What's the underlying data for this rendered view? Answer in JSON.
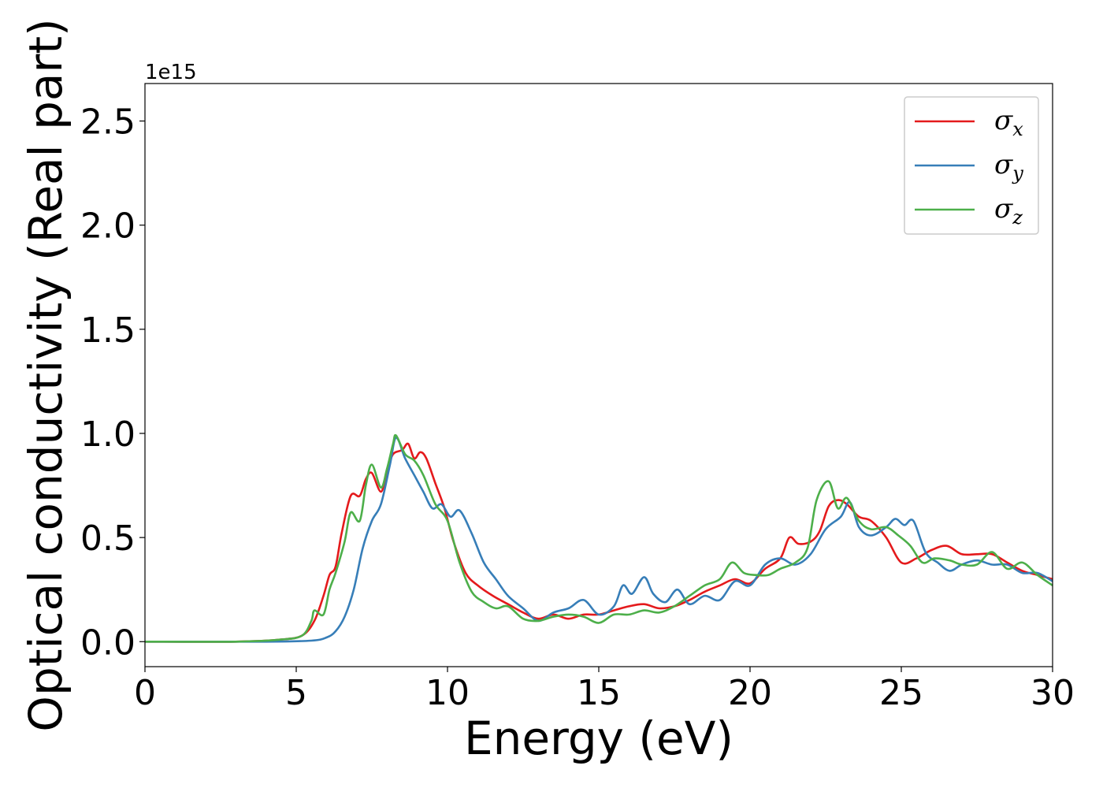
{
  "chart_data": {
    "type": "line",
    "title": "",
    "xlabel": "Energy (eV)",
    "ylabel": "Optical conductivity (Real part)",
    "y_offset_label": "1e15",
    "xlim": [
      0,
      30
    ],
    "ylim": [
      -0.12,
      2.68
    ],
    "x_ticks": [
      0,
      5,
      10,
      15,
      20,
      25,
      30
    ],
    "y_ticks": [
      0.0,
      0.5,
      1.0,
      1.5,
      2.0,
      2.5
    ],
    "x_tick_labels": [
      "0",
      "5",
      "10",
      "15",
      "20",
      "25",
      "30"
    ],
    "y_tick_labels": [
      "0.0",
      "0.5",
      "1.0",
      "1.5",
      "2.0",
      "2.5"
    ],
    "grid": false,
    "legend_position": "top-right",
    "series": [
      {
        "name": "σ",
        "subscript": "x",
        "color": "#e41a1c",
        "points": [
          [
            0,
            0
          ],
          [
            3,
            0.0
          ],
          [
            4.5,
            0.01
          ],
          [
            5.2,
            0.03
          ],
          [
            5.6,
            0.1
          ],
          [
            5.9,
            0.22
          ],
          [
            6.1,
            0.32
          ],
          [
            6.3,
            0.36
          ],
          [
            6.5,
            0.52
          ],
          [
            6.8,
            0.7
          ],
          [
            7.1,
            0.7
          ],
          [
            7.3,
            0.78
          ],
          [
            7.5,
            0.81
          ],
          [
            7.8,
            0.72
          ],
          [
            8.0,
            0.82
          ],
          [
            8.2,
            0.9
          ],
          [
            8.5,
            0.92
          ],
          [
            8.7,
            0.95
          ],
          [
            8.9,
            0.88
          ],
          [
            9.1,
            0.91
          ],
          [
            9.3,
            0.88
          ],
          [
            9.6,
            0.76
          ],
          [
            9.9,
            0.64
          ],
          [
            10.2,
            0.48
          ],
          [
            10.6,
            0.33
          ],
          [
            11.0,
            0.27
          ],
          [
            11.5,
            0.22
          ],
          [
            12.0,
            0.18
          ],
          [
            12.5,
            0.14
          ],
          [
            13.0,
            0.11
          ],
          [
            13.5,
            0.13
          ],
          [
            14.0,
            0.11
          ],
          [
            14.5,
            0.13
          ],
          [
            15.0,
            0.13
          ],
          [
            15.5,
            0.15
          ],
          [
            16.0,
            0.17
          ],
          [
            16.5,
            0.18
          ],
          [
            17.0,
            0.16
          ],
          [
            17.5,
            0.17
          ],
          [
            18.0,
            0.2
          ],
          [
            18.5,
            0.24
          ],
          [
            19.0,
            0.27
          ],
          [
            19.5,
            0.3
          ],
          [
            20.0,
            0.28
          ],
          [
            20.5,
            0.35
          ],
          [
            21.0,
            0.4
          ],
          [
            21.3,
            0.5
          ],
          [
            21.6,
            0.47
          ],
          [
            22.0,
            0.48
          ],
          [
            22.3,
            0.53
          ],
          [
            22.6,
            0.65
          ],
          [
            22.9,
            0.68
          ],
          [
            23.2,
            0.66
          ],
          [
            23.6,
            0.6
          ],
          [
            24.0,
            0.58
          ],
          [
            24.5,
            0.5
          ],
          [
            25.0,
            0.38
          ],
          [
            25.5,
            0.4
          ],
          [
            26.0,
            0.44
          ],
          [
            26.5,
            0.46
          ],
          [
            27.0,
            0.42
          ],
          [
            27.5,
            0.42
          ],
          [
            28.0,
            0.42
          ],
          [
            28.5,
            0.38
          ],
          [
            29.0,
            0.34
          ],
          [
            29.5,
            0.32
          ],
          [
            30.0,
            0.3
          ]
        ]
      },
      {
        "name": "σ",
        "subscript": "y",
        "color": "#377eb8",
        "points": [
          [
            0,
            0
          ],
          [
            4,
            0.0
          ],
          [
            5.5,
            0.005
          ],
          [
            6.0,
            0.02
          ],
          [
            6.3,
            0.05
          ],
          [
            6.6,
            0.12
          ],
          [
            6.9,
            0.25
          ],
          [
            7.2,
            0.45
          ],
          [
            7.5,
            0.58
          ],
          [
            7.8,
            0.66
          ],
          [
            8.1,
            0.85
          ],
          [
            8.3,
            0.98
          ],
          [
            8.6,
            0.88
          ],
          [
            8.9,
            0.8
          ],
          [
            9.2,
            0.72
          ],
          [
            9.5,
            0.64
          ],
          [
            9.8,
            0.66
          ],
          [
            10.1,
            0.6
          ],
          [
            10.4,
            0.63
          ],
          [
            10.8,
            0.52
          ],
          [
            11.2,
            0.38
          ],
          [
            11.6,
            0.3
          ],
          [
            12.0,
            0.22
          ],
          [
            12.5,
            0.16
          ],
          [
            13.0,
            0.1
          ],
          [
            13.5,
            0.14
          ],
          [
            14.0,
            0.16
          ],
          [
            14.5,
            0.2
          ],
          [
            15.0,
            0.13
          ],
          [
            15.5,
            0.17
          ],
          [
            15.8,
            0.27
          ],
          [
            16.1,
            0.23
          ],
          [
            16.5,
            0.31
          ],
          [
            16.8,
            0.23
          ],
          [
            17.2,
            0.19
          ],
          [
            17.6,
            0.25
          ],
          [
            18.0,
            0.18
          ],
          [
            18.5,
            0.22
          ],
          [
            19.0,
            0.2
          ],
          [
            19.5,
            0.29
          ],
          [
            20.0,
            0.27
          ],
          [
            20.5,
            0.37
          ],
          [
            21.0,
            0.4
          ],
          [
            21.5,
            0.37
          ],
          [
            22.0,
            0.42
          ],
          [
            22.5,
            0.54
          ],
          [
            23.0,
            0.6
          ],
          [
            23.3,
            0.67
          ],
          [
            23.6,
            0.55
          ],
          [
            24.0,
            0.51
          ],
          [
            24.5,
            0.55
          ],
          [
            24.8,
            0.59
          ],
          [
            25.1,
            0.56
          ],
          [
            25.4,
            0.58
          ],
          [
            25.8,
            0.43
          ],
          [
            26.2,
            0.38
          ],
          [
            26.6,
            0.34
          ],
          [
            27.0,
            0.37
          ],
          [
            27.5,
            0.39
          ],
          [
            28.0,
            0.37
          ],
          [
            28.5,
            0.37
          ],
          [
            29.0,
            0.33
          ],
          [
            29.5,
            0.33
          ],
          [
            30.0,
            0.29
          ]
        ]
      },
      {
        "name": "σ",
        "subscript": "z",
        "color": "#4daf4a",
        "points": [
          [
            0,
            0
          ],
          [
            3,
            0.0
          ],
          [
            4.5,
            0.01
          ],
          [
            5.2,
            0.03
          ],
          [
            5.5,
            0.1
          ],
          [
            5.6,
            0.15
          ],
          [
            5.9,
            0.13
          ],
          [
            6.1,
            0.25
          ],
          [
            6.3,
            0.33
          ],
          [
            6.6,
            0.48
          ],
          [
            6.8,
            0.62
          ],
          [
            7.1,
            0.58
          ],
          [
            7.3,
            0.75
          ],
          [
            7.5,
            0.85
          ],
          [
            7.8,
            0.74
          ],
          [
            8.0,
            0.83
          ],
          [
            8.2,
            0.95
          ],
          [
            8.3,
            0.99
          ],
          [
            8.6,
            0.9
          ],
          [
            8.9,
            0.87
          ],
          [
            9.2,
            0.8
          ],
          [
            9.6,
            0.66
          ],
          [
            10.0,
            0.58
          ],
          [
            10.4,
            0.38
          ],
          [
            10.8,
            0.24
          ],
          [
            11.2,
            0.19
          ],
          [
            11.6,
            0.16
          ],
          [
            12.0,
            0.17
          ],
          [
            12.5,
            0.11
          ],
          [
            13.0,
            0.1
          ],
          [
            13.5,
            0.12
          ],
          [
            14.0,
            0.13
          ],
          [
            14.5,
            0.12
          ],
          [
            15.0,
            0.09
          ],
          [
            15.5,
            0.13
          ],
          [
            16.0,
            0.13
          ],
          [
            16.5,
            0.15
          ],
          [
            17.0,
            0.14
          ],
          [
            17.5,
            0.17
          ],
          [
            18.0,
            0.22
          ],
          [
            18.5,
            0.27
          ],
          [
            19.0,
            0.3
          ],
          [
            19.4,
            0.38
          ],
          [
            19.8,
            0.33
          ],
          [
            20.2,
            0.32
          ],
          [
            20.6,
            0.32
          ],
          [
            21.0,
            0.35
          ],
          [
            21.5,
            0.38
          ],
          [
            21.9,
            0.45
          ],
          [
            22.2,
            0.68
          ],
          [
            22.6,
            0.77
          ],
          [
            22.9,
            0.64
          ],
          [
            23.2,
            0.69
          ],
          [
            23.6,
            0.58
          ],
          [
            24.0,
            0.54
          ],
          [
            24.5,
            0.55
          ],
          [
            24.9,
            0.51
          ],
          [
            25.3,
            0.46
          ],
          [
            25.7,
            0.38
          ],
          [
            26.1,
            0.4
          ],
          [
            26.6,
            0.39
          ],
          [
            27.0,
            0.37
          ],
          [
            27.5,
            0.37
          ],
          [
            28.0,
            0.43
          ],
          [
            28.5,
            0.35
          ],
          [
            29.0,
            0.38
          ],
          [
            29.5,
            0.32
          ],
          [
            30.0,
            0.27
          ]
        ]
      }
    ]
  }
}
